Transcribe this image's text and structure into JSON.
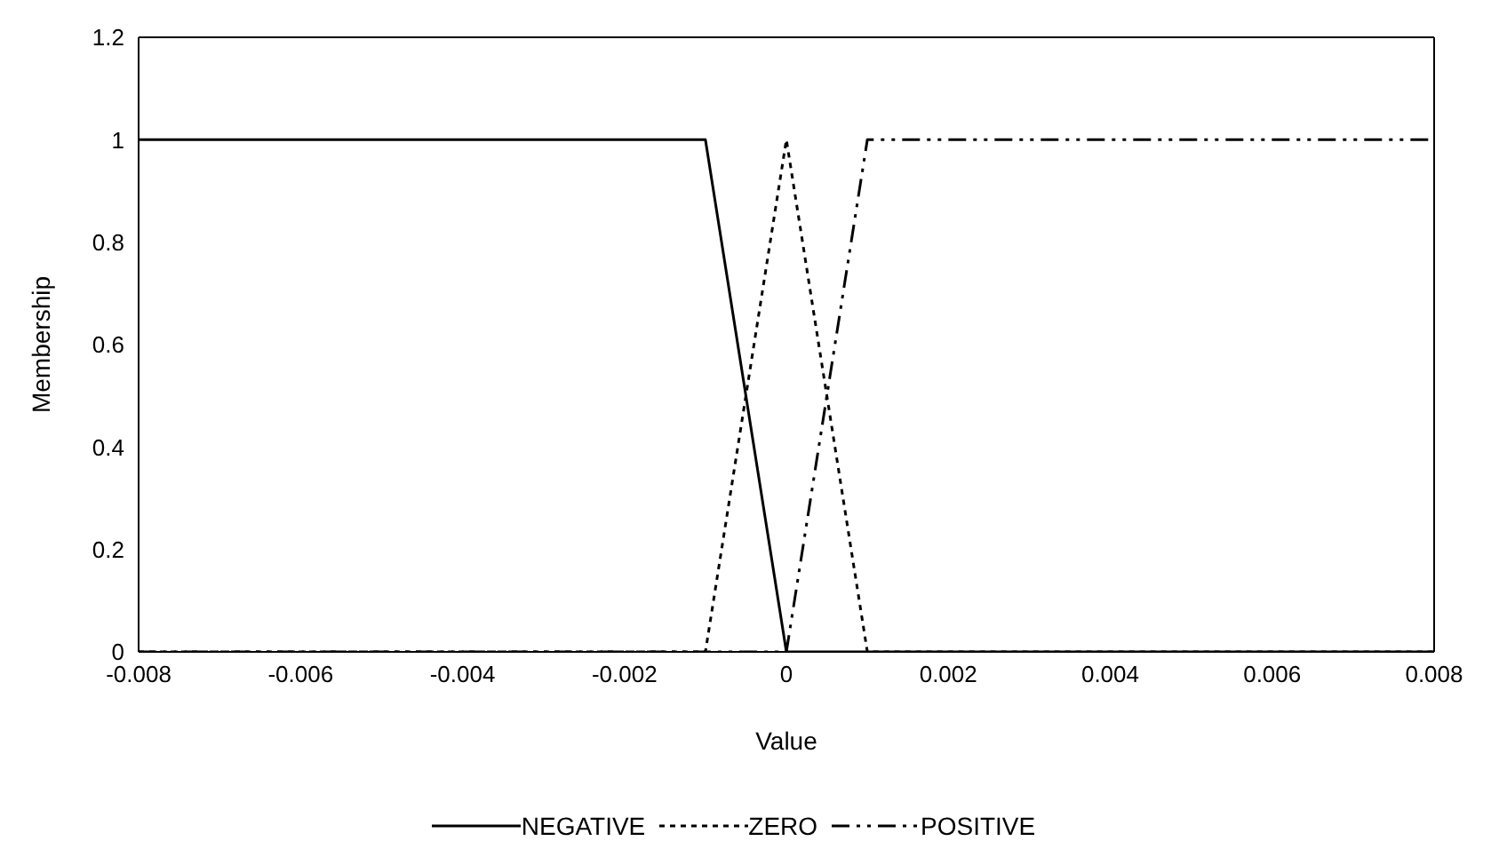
{
  "chart_data": {
    "type": "line",
    "xlabel": "Value",
    "ylabel": "Membership",
    "xlim": [
      -0.008,
      0.008
    ],
    "xticks": [
      -0.008,
      -0.006,
      -0.004,
      -0.002,
      0,
      0.002,
      0.004,
      0.006,
      0.008
    ],
    "ylim": [
      0,
      1.2
    ],
    "yticks": [
      0,
      0.2,
      0.4,
      0.6,
      0.8,
      1,
      1.2
    ],
    "grid": false,
    "legend": "bottom",
    "marker": "none",
    "series": [
      {
        "name": "NEGATIVE",
        "color": "#000000",
        "line_style": "solid",
        "x": [
          -0.008,
          -0.001,
          0,
          0.008
        ],
        "values": [
          1,
          1,
          0,
          0
        ]
      },
      {
        "name": "ZERO",
        "color": "#000000",
        "line_style": "dotted",
        "x": [
          -0.008,
          -0.001,
          0,
          0.001,
          0.008
        ],
        "values": [
          0,
          0,
          1,
          0,
          0
        ]
      },
      {
        "name": "POSITIVE",
        "color": "#000000",
        "line_style": "dashed",
        "x": [
          -0.008,
          0,
          0.001,
          0.008
        ],
        "values": [
          0,
          0,
          1,
          1
        ]
      }
    ]
  }
}
